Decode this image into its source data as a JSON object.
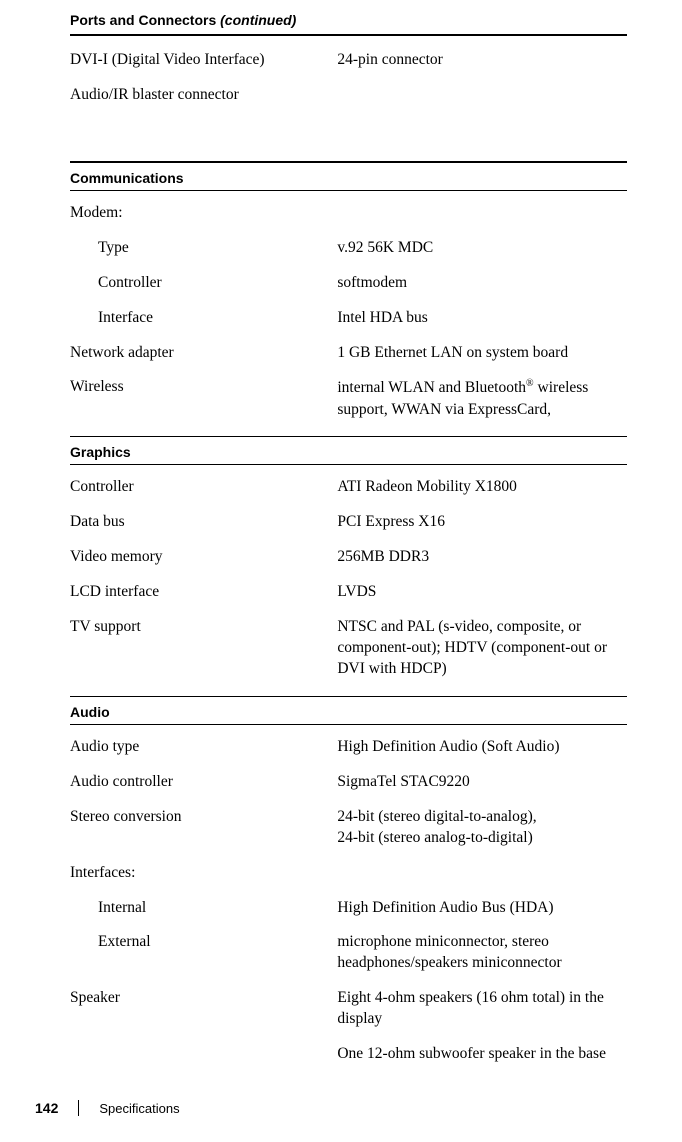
{
  "ports_header": "Ports and Connectors",
  "ports_header_cont": "(continued)",
  "ports_rows": [
    {
      "label": "DVI-I (Digital Video Interface)",
      "value": "24-pin connector"
    },
    {
      "label": "Audio/IR blaster connector",
      "value": ""
    }
  ],
  "comm_header": "Communications",
  "comm_modem_label": "Modem:",
  "comm_rows_indent": [
    {
      "label": "Type",
      "value": "v.92 56K MDC"
    },
    {
      "label": "Controller",
      "value": "softmodem"
    },
    {
      "label": "Interface",
      "value": "Intel HDA bus"
    }
  ],
  "comm_rows": [
    {
      "label": "Network adapter",
      "value": "1 GB Ethernet LAN on system board"
    }
  ],
  "comm_wireless_label": "Wireless",
  "comm_wireless_v1": "internal WLAN and Bluetooth",
  "comm_wireless_sup": "®",
  "comm_wireless_v2": " wireless support, WWAN via ExpressCard,",
  "graphics_header": "Graphics",
  "graphics_rows": [
    {
      "label": "Controller",
      "value": "ATI Radeon Mobility X1800"
    },
    {
      "label": "Data bus",
      "value": "PCI Express X16"
    },
    {
      "label": "Video memory",
      "value": "256MB DDR3"
    },
    {
      "label": "LCD interface",
      "value": "LVDS"
    },
    {
      "label": "TV support",
      "value": "NTSC and PAL (s-video, composite, or component-out); HDTV (component-out or DVI with HDCP)"
    }
  ],
  "audio_header": "Audio",
  "audio_rows_top": [
    {
      "label": "Audio type",
      "value": "High Definition Audio (Soft Audio)"
    },
    {
      "label": "Audio controller",
      "value": "SigmaTel STAC9220"
    },
    {
      "label": "Stereo conversion",
      "value": "24-bit (stereo digital-to-analog),\n24-bit (stereo analog-to-digital)"
    }
  ],
  "audio_interfaces_label": "Interfaces:",
  "audio_rows_indent": [
    {
      "label": "Internal",
      "value": "High Definition Audio Bus (HDA)"
    },
    {
      "label": "External",
      "value": "microphone miniconnector, stereo headphones/speakers miniconnector"
    }
  ],
  "audio_speaker_label": "Speaker",
  "audio_speaker_v1": "Eight 4-ohm speakers (16 ohm total) in the display",
  "audio_speaker_v2": "One 12-ohm subwoofer speaker in the base",
  "footer_page": "142",
  "footer_title": "Specifications"
}
